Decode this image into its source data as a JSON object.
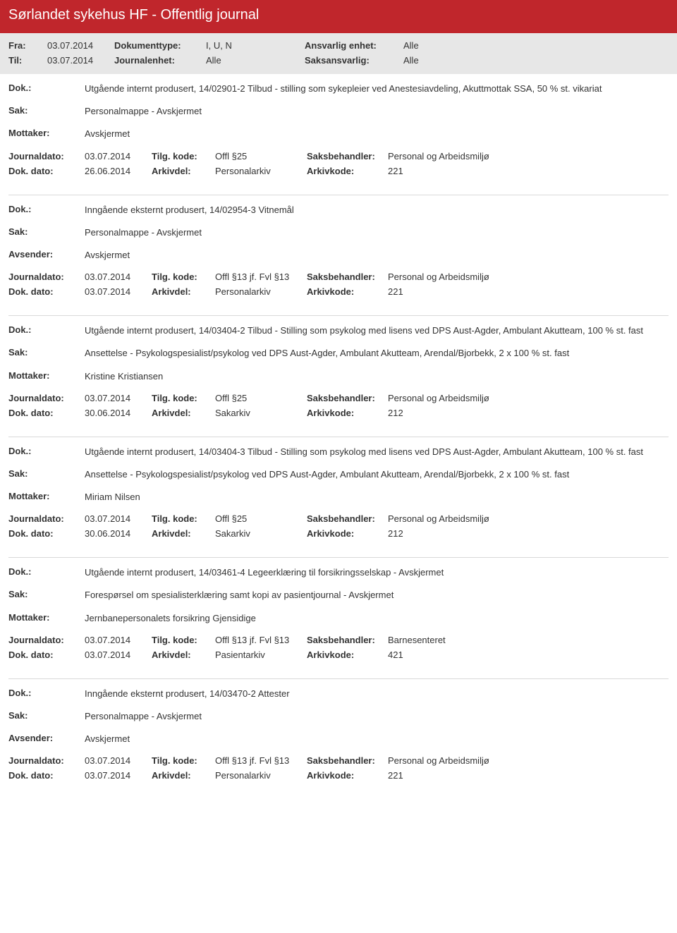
{
  "header": {
    "title": "Sørlandet sykehus HF - Offentlig journal"
  },
  "filter": {
    "fra_label": "Fra:",
    "fra_value": "03.07.2014",
    "til_label": "Til:",
    "til_value": "03.07.2014",
    "doktype_label": "Dokumenttype:",
    "doktype_value": "I, U, N",
    "journalenhet_label": "Journalenhet:",
    "journalenhet_value": "Alle",
    "ansvarlig_label": "Ansvarlig enhet:",
    "ansvarlig_value": "Alle",
    "saksansvarlig_label": "Saksansvarlig:",
    "saksansvarlig_value": "Alle"
  },
  "labels": {
    "dok": "Dok.:",
    "sak": "Sak:",
    "mottaker": "Mottaker:",
    "avsender": "Avsender:",
    "journaldato": "Journaldato:",
    "dokdato": "Dok. dato:",
    "tilgkode": "Tilg. kode:",
    "arkivdel": "Arkivdel:",
    "saksbehandler": "Saksbehandler:",
    "arkivkode": "Arkivkode:"
  },
  "entries": [
    {
      "dok": "Utgående internt produsert, 14/02901-2 Tilbud - stilling som sykepleier ved Anestesiavdeling, Akuttmottak SSA, 50 % st. vikariat",
      "sak": "Personalmappe - Avskjermet",
      "party_label": "Mottaker:",
      "party": "Avskjermet",
      "journaldato": "03.07.2014",
      "tilgkode": "Offl §25",
      "saksbehandler": "Personal og Arbeidsmiljø",
      "dokdato": "26.06.2014",
      "arkivdel": "Personalarkiv",
      "arkivkode": "221"
    },
    {
      "dok": "Inngående eksternt produsert, 14/02954-3 Vitnemål",
      "sak": "Personalmappe - Avskjermet",
      "party_label": "Avsender:",
      "party": "Avskjermet",
      "journaldato": "03.07.2014",
      "tilgkode": "Offl §13 jf. Fvl §13",
      "saksbehandler": "Personal og Arbeidsmiljø",
      "dokdato": "03.07.2014",
      "arkivdel": "Personalarkiv",
      "arkivkode": "221"
    },
    {
      "dok": "Utgående internt produsert, 14/03404-2 Tilbud - Stilling som psykolog med lisens ved DPS Aust-Agder, Ambulant Akutteam, 100 % st. fast",
      "sak": "Ansettelse - Psykologspesialist/psykolog ved DPS Aust-Agder, Ambulant Akutteam, Arendal/Bjorbekk, 2 x 100 % st. fast",
      "party_label": "Mottaker:",
      "party": "Kristine Kristiansen",
      "journaldato": "03.07.2014",
      "tilgkode": "Offl §25",
      "saksbehandler": "Personal og Arbeidsmiljø",
      "dokdato": "30.06.2014",
      "arkivdel": "Sakarkiv",
      "arkivkode": "212"
    },
    {
      "dok": "Utgående internt produsert, 14/03404-3 Tilbud - Stilling som psykolog med lisens ved DPS Aust-Agder, Ambulant Akutteam, 100 % st. fast",
      "sak": "Ansettelse - Psykologspesialist/psykolog ved DPS Aust-Agder, Ambulant Akutteam, Arendal/Bjorbekk, 2 x 100 % st. fast",
      "party_label": "Mottaker:",
      "party": "Miriam Nilsen",
      "journaldato": "03.07.2014",
      "tilgkode": "Offl §25",
      "saksbehandler": "Personal og Arbeidsmiljø",
      "dokdato": "30.06.2014",
      "arkivdel": "Sakarkiv",
      "arkivkode": "212"
    },
    {
      "dok": "Utgående internt produsert, 14/03461-4 Legeerklæring til forsikringsselskap - Avskjermet",
      "sak": "Forespørsel om spesialisterklæring samt kopi av pasientjournal - Avskjermet",
      "party_label": "Mottaker:",
      "party": "Jernbanepersonalets forsikring Gjensidige",
      "journaldato": "03.07.2014",
      "tilgkode": "Offl §13 jf. Fvl §13",
      "saksbehandler": "Barnesenteret",
      "dokdato": "03.07.2014",
      "arkivdel": "Pasientarkiv",
      "arkivkode": "421"
    },
    {
      "dok": "Inngående eksternt produsert, 14/03470-2 Attester",
      "sak": "Personalmappe - Avskjermet",
      "party_label": "Avsender:",
      "party": "Avskjermet",
      "journaldato": "03.07.2014",
      "tilgkode": "Offl §13 jf. Fvl §13",
      "saksbehandler": "Personal og Arbeidsmiljø",
      "dokdato": "03.07.2014",
      "arkivdel": "Personalarkiv",
      "arkivkode": "221"
    }
  ]
}
